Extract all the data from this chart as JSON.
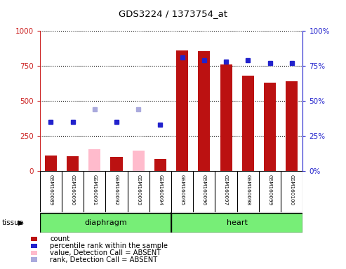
{
  "title": "GDS3224 / 1373754_at",
  "samples": [
    "GSM160089",
    "GSM160090",
    "GSM160091",
    "GSM160092",
    "GSM160093",
    "GSM160094",
    "GSM160095",
    "GSM160096",
    "GSM160097",
    "GSM160098",
    "GSM160099",
    "GSM160100"
  ],
  "tissue_groups": [
    {
      "label": "diaphragm",
      "start": 0,
      "end": 5
    },
    {
      "label": "heart",
      "start": 6,
      "end": 11
    }
  ],
  "count_values": [
    110,
    105,
    null,
    100,
    null,
    85,
    860,
    855,
    760,
    680,
    630,
    640
  ],
  "count_absent_values": [
    null,
    null,
    155,
    null,
    145,
    null,
    null,
    null,
    null,
    null,
    null,
    null
  ],
  "rank_values": [
    35,
    35,
    null,
    35,
    null,
    33,
    81,
    79,
    78,
    79,
    77,
    77
  ],
  "rank_absent_values": [
    null,
    null,
    44,
    null,
    44,
    null,
    null,
    null,
    null,
    null,
    null,
    null
  ],
  "count_color": "#bb1111",
  "count_absent_color": "#ffbbcc",
  "rank_color": "#2222cc",
  "rank_absent_color": "#aaaadd",
  "ylim_left": [
    0,
    1000
  ],
  "ylim_right": [
    0,
    100
  ],
  "yticks_left": [
    0,
    250,
    500,
    750,
    1000
  ],
  "yticks_right": [
    0,
    25,
    50,
    75,
    100
  ],
  "yticklabels_left": [
    "0",
    "250",
    "500",
    "750",
    "1000"
  ],
  "yticklabels_right": [
    "0%",
    "25%",
    "50%",
    "75%",
    "100%"
  ],
  "tissue_bg_color": "#77ee77",
  "sample_box_color": "#cccccc",
  "bg_color": "#ffffff",
  "plot_bg_color": "#ffffff",
  "legend_items": [
    {
      "label": "count",
      "color": "#bb1111"
    },
    {
      "label": "percentile rank within the sample",
      "color": "#2222cc"
    },
    {
      "label": "value, Detection Call = ABSENT",
      "color": "#ffbbcc"
    },
    {
      "label": "rank, Detection Call = ABSENT",
      "color": "#aaaadd"
    }
  ]
}
